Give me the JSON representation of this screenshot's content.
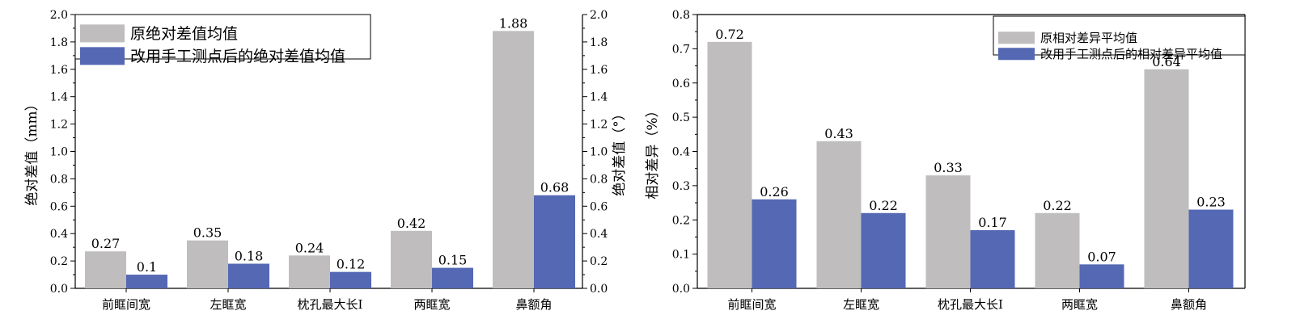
{
  "colors": {
    "original": "#bfbdbe",
    "manual": "#5468b3",
    "axis": "#000000"
  },
  "chart_data": [
    {
      "type": "bar",
      "categories": [
        "前眶间宽",
        "左眶宽",
        "枕孔最大长I",
        "两眶宽",
        "鼻额角"
      ],
      "series": [
        {
          "name": "原绝对差值均值",
          "values": [
            0.27,
            0.35,
            0.24,
            0.42,
            1.88
          ],
          "labels": [
            "0.27",
            "0.35",
            "0.24",
            "0.42",
            "1.88"
          ]
        },
        {
          "name": "改用手工测点后的绝对差值均值",
          "values": [
            0.1,
            0.18,
            0.12,
            0.15,
            0.68
          ],
          "labels": [
            "0.1",
            "0.18",
            "0.12",
            "0.15",
            "0.68"
          ]
        }
      ],
      "ylabel": "绝对差值（mm）",
      "y2label": "绝对差值（°）",
      "ylim": [
        0,
        2.0
      ],
      "y_ticks": [
        "0.0",
        "0.2",
        "0.4",
        "0.6",
        "0.8",
        "1.0",
        "1.2",
        "1.4",
        "1.6",
        "1.8",
        "2.0"
      ],
      "y2_ticks": [
        "0.0",
        "0.2",
        "0.4",
        "0.6",
        "0.8",
        "1.0",
        "1.2",
        "1.4",
        "1.6",
        "1.8",
        "2.0"
      ],
      "grid": false,
      "legend": "top-left"
    },
    {
      "type": "bar",
      "categories": [
        "前眶间宽",
        "左眶宽",
        "枕孔最大长I",
        "两眶宽",
        "鼻额角"
      ],
      "series": [
        {
          "name": "原相对差异平均值",
          "values": [
            0.72,
            0.43,
            0.33,
            0.22,
            0.64
          ],
          "labels": [
            "0.72",
            "0.43",
            "0.33",
            "0.22",
            "0.64"
          ]
        },
        {
          "name": "改用手工测点后的相对差异平均值",
          "values": [
            0.26,
            0.22,
            0.17,
            0.07,
            0.23
          ],
          "labels": [
            "0.26",
            "0.22",
            "0.17",
            "0.07",
            "0.23"
          ]
        }
      ],
      "ylabel": "相对差异（%）",
      "ylim": [
        0,
        0.8
      ],
      "y_ticks": [
        "0.0",
        "0.1",
        "0.2",
        "0.3",
        "0.4",
        "0.5",
        "0.6",
        "0.7",
        "0.8"
      ],
      "grid": false,
      "legend": "top-right"
    }
  ]
}
